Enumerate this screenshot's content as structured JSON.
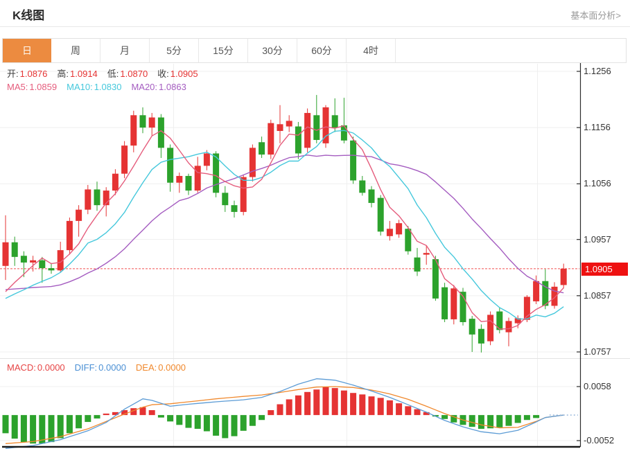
{
  "header": {
    "title": "K线图",
    "link": "基本面分析>"
  },
  "tabs": {
    "active_index": 0,
    "items": [
      "日",
      "周",
      "月",
      "5分",
      "15分",
      "30分",
      "60分",
      "4时"
    ]
  },
  "legend_ohlc": [
    {
      "label": "开:",
      "value": "1.0876"
    },
    {
      "label": "高:",
      "value": "1.0914"
    },
    {
      "label": "低:",
      "value": "1.0870"
    },
    {
      "label": "收:",
      "value": "1.0905"
    }
  ],
  "legend_ma": [
    {
      "label": "MA5:",
      "value": "1.0859",
      "color": "#e55c7c"
    },
    {
      "label": "MA10:",
      "value": "1.0830",
      "color": "#45c8dc"
    },
    {
      "label": "MA20:",
      "value": "1.0863",
      "color": "#a45cc0"
    }
  ],
  "legend_macd": [
    {
      "label": "MACD:",
      "value": "0.0000",
      "color": "#e64444"
    },
    {
      "label": "DIFF:",
      "value": "0.0000",
      "color": "#4a8fd4"
    },
    {
      "label": "DEA:",
      "value": "0.0000",
      "color": "#f0882c"
    }
  ],
  "price_axis": {
    "ticks": [
      "1.1256",
      "1.1156",
      "1.1056",
      "1.0957",
      "1.0857",
      "1.0757"
    ],
    "last_price": "1.0905"
  },
  "macd_axis": {
    "ticks": [
      "0.0058",
      "-0.0052"
    ]
  },
  "colors": {
    "up": "#e53333",
    "down": "#2ca22c",
    "ma5": "#e55c7c",
    "ma10": "#45c8dc",
    "ma20": "#a45cc0",
    "diff": "#5b9bd5",
    "dea": "#f0882c",
    "grid": "#efefef",
    "axis": "#2b2b2b",
    "border": "#e4e4e4",
    "price_line": "#f24f4f",
    "badge_bg": "#ee1111",
    "tab_active_bg": "#ec8b40",
    "dotted_zero": "#9bb9dc",
    "bottom_bar": "#1a1a1a"
  },
  "chart_data": [
    {
      "type": "candlestick",
      "name": "K线图 日线",
      "y_ticks": [
        1.1256,
        1.1156,
        1.1056,
        1.0957,
        1.0857,
        1.0757
      ],
      "last_price": 1.0905,
      "ohlc_readout": {
        "open": 1.0876,
        "high": 1.0914,
        "low": 1.087,
        "close": 1.0905
      },
      "ma_readout": {
        "MA5": 1.0859,
        "MA10": 1.083,
        "MA20": 1.0863
      },
      "ma_periods": [
        5,
        10,
        20
      ],
      "ma_seed_closes": [
        1.09,
        1.0895,
        1.089,
        1.0888,
        1.0885,
        1.088,
        1.0878,
        1.0875,
        1.0872,
        1.087,
        1.0845,
        1.0842,
        1.084,
        1.0838,
        1.0836,
        1.0844,
        1.0843,
        1.0842,
        1.084
      ],
      "candles": [
        [
          1.091,
          1.1,
          1.0885,
          1.0952
        ],
        [
          1.0952,
          1.0962,
          1.091,
          1.0926
        ],
        [
          1.0928,
          1.0936,
          1.089,
          1.0916
        ],
        [
          1.0916,
          1.0928,
          1.09,
          1.092
        ],
        [
          1.092,
          1.0926,
          1.088,
          1.0906
        ],
        [
          1.0906,
          1.0915,
          1.0896,
          1.0902
        ],
        [
          1.0902,
          1.0953,
          1.0898,
          1.0938
        ],
        [
          1.0938,
          1.0996,
          1.093,
          1.099
        ],
        [
          1.099,
          1.1018,
          1.0962,
          1.101
        ],
        [
          1.101,
          1.1054,
          1.1002,
          1.1046
        ],
        [
          1.1046,
          1.106,
          1.1008,
          1.1018
        ],
        [
          1.1018,
          1.105,
          1.0998,
          1.1044
        ],
        [
          1.1044,
          1.1082,
          1.1036,
          1.1074
        ],
        [
          1.1074,
          1.1132,
          1.1066,
          1.1124
        ],
        [
          1.1124,
          1.1186,
          1.1112,
          1.1178
        ],
        [
          1.1178,
          1.1192,
          1.1146,
          1.1156
        ],
        [
          1.1156,
          1.1182,
          1.1142,
          1.1174
        ],
        [
          1.1174,
          1.118,
          1.1102,
          1.112
        ],
        [
          1.112,
          1.1126,
          1.1042,
          1.1058
        ],
        [
          1.1058,
          1.1076,
          1.104,
          1.107
        ],
        [
          1.107,
          1.1074,
          1.1036,
          1.1044
        ],
        [
          1.1044,
          1.1104,
          1.104,
          1.1088
        ],
        [
          1.1088,
          1.1116,
          1.108,
          1.111
        ],
        [
          1.111,
          1.1114,
          1.1032,
          1.104
        ],
        [
          1.104,
          1.1052,
          1.1006,
          1.1018
        ],
        [
          1.1018,
          1.1026,
          1.0996,
          1.1006
        ],
        [
          1.1006,
          1.1072,
          1.1,
          1.1068
        ],
        [
          1.1068,
          1.1126,
          1.106,
          1.112
        ],
        [
          1.113,
          1.114,
          1.1102,
          1.1108
        ],
        [
          1.1108,
          1.117,
          1.11,
          1.1164
        ],
        [
          1.115,
          1.1196,
          1.1128,
          1.1162
        ],
        [
          1.1158,
          1.1178,
          1.1148,
          1.1168
        ],
        [
          1.1158,
          1.1166,
          1.11,
          1.111
        ],
        [
          1.112,
          1.119,
          1.1112,
          1.1182
        ],
        [
          1.1178,
          1.1214,
          1.1128,
          1.1134
        ],
        [
          1.1128,
          1.1196,
          1.112,
          1.1192
        ],
        [
          1.1178,
          1.1208,
          1.1148,
          1.1156
        ],
        [
          1.116,
          1.1209,
          1.1128,
          1.1133
        ],
        [
          1.1133,
          1.114,
          1.1056,
          1.1062
        ],
        [
          1.1062,
          1.107,
          1.1035,
          1.104
        ],
        [
          1.1046,
          1.1052,
          1.1014,
          1.1022
        ],
        [
          1.1031,
          1.1036,
          1.0964,
          1.0971
        ],
        [
          1.0963,
          1.099,
          1.0955,
          1.0976
        ],
        [
          1.0966,
          1.0992,
          1.096,
          1.0986
        ],
        [
          1.0976,
          1.0981,
          1.093,
          1.0936
        ],
        [
          1.0925,
          1.0942,
          1.0892,
          1.09
        ],
        [
          1.093,
          1.0946,
          1.0912,
          1.0933
        ],
        [
          1.0922,
          1.0928,
          1.0848,
          1.0852
        ],
        [
          1.0872,
          1.088,
          1.081,
          1.0815
        ],
        [
          1.0815,
          1.0876,
          1.0806,
          1.087
        ],
        [
          1.0864,
          1.0871,
          1.0804,
          1.081
        ],
        [
          1.0816,
          1.0821,
          1.0757,
          1.0788
        ],
        [
          1.0798,
          1.0806,
          1.0756,
          1.0772
        ],
        [
          1.0776,
          1.0829,
          1.0769,
          1.0823
        ],
        [
          1.0829,
          1.0836,
          1.079,
          1.0796
        ],
        [
          1.0792,
          1.0818,
          1.0767,
          1.0812
        ],
        [
          1.0808,
          1.0822,
          1.0799,
          1.0817
        ],
        [
          1.0814,
          1.0858,
          1.081,
          1.0855
        ],
        [
          1.0847,
          1.0893,
          1.0842,
          1.0883
        ],
        [
          1.0883,
          1.0904,
          1.0833,
          1.0839
        ],
        [
          1.0839,
          1.0881,
          1.0834,
          1.0873
        ],
        [
          1.0876,
          1.0914,
          1.087,
          1.0905
        ]
      ]
    },
    {
      "type": "bar",
      "name": "MACD",
      "y_ticks": [
        0.0058,
        -0.0052
      ],
      "readout": {
        "MACD": 0.0,
        "DIFF": 0.0,
        "DEA": 0.0
      },
      "histogram": [
        -0.0037,
        -0.0048,
        -0.0055,
        -0.0058,
        -0.0058,
        -0.0055,
        -0.0047,
        -0.0037,
        -0.0027,
        -0.0014,
        -0.0007,
        0.0003,
        0.0006,
        0.001,
        0.0014,
        0.0016,
        0.001,
        -0.0005,
        -0.0013,
        -0.002,
        -0.0026,
        -0.0028,
        -0.0033,
        -0.0042,
        -0.0047,
        -0.0043,
        -0.0032,
        -0.0022,
        -0.001,
        0.001,
        0.0022,
        0.0032,
        0.004,
        0.0047,
        0.0052,
        0.0057,
        0.0055,
        0.005,
        0.0045,
        0.0042,
        0.0038,
        0.0035,
        0.003,
        0.0024,
        0.0018,
        0.0012,
        0.0006,
        -0.0003,
        -0.0008,
        -0.0015,
        -0.002,
        -0.0024,
        -0.0028,
        -0.0027,
        -0.0025,
        -0.0022,
        -0.0016,
        -0.001,
        -0.0006,
        0.0,
        0.0,
        0.0
      ],
      "diff_points": [
        [
          0,
          -0.0068
        ],
        [
          3,
          -0.0062
        ],
        [
          6,
          -0.005
        ],
        [
          9,
          -0.0032
        ],
        [
          11,
          -0.0015
        ],
        [
          13,
          0.0012
        ],
        [
          15,
          0.0033
        ],
        [
          16,
          0.003
        ],
        [
          18,
          0.0018
        ],
        [
          20,
          0.0022
        ],
        [
          23,
          0.0027
        ],
        [
          26,
          0.0031
        ],
        [
          28,
          0.0036
        ],
        [
          30,
          0.0048
        ],
        [
          32,
          0.0063
        ],
        [
          34,
          0.0074
        ],
        [
          36,
          0.0071
        ],
        [
          38,
          0.0061
        ],
        [
          40,
          0.0049
        ],
        [
          42,
          0.0036
        ],
        [
          44,
          0.0021
        ],
        [
          46,
          0.0006
        ],
        [
          48,
          -0.0011
        ],
        [
          50,
          -0.0024
        ],
        [
          52,
          -0.0034
        ],
        [
          54,
          -0.0038
        ],
        [
          56,
          -0.0031
        ],
        [
          58,
          -0.0014
        ],
        [
          59,
          -0.0005
        ],
        [
          61,
          0.0
        ]
      ],
      "dea_points": [
        [
          0,
          -0.0058
        ],
        [
          3,
          -0.0054
        ],
        [
          6,
          -0.0044
        ],
        [
          9,
          -0.0028
        ],
        [
          11,
          -0.0013
        ],
        [
          13,
          0.0002
        ],
        [
          15,
          0.0016
        ],
        [
          16,
          0.0021
        ],
        [
          18,
          0.0023
        ],
        [
          20,
          0.0027
        ],
        [
          23,
          0.0033
        ],
        [
          26,
          0.0038
        ],
        [
          28,
          0.0041
        ],
        [
          30,
          0.0046
        ],
        [
          32,
          0.0052
        ],
        [
          34,
          0.0057
        ],
        [
          36,
          0.0058
        ],
        [
          38,
          0.0056
        ],
        [
          40,
          0.0051
        ],
        [
          42,
          0.0043
        ],
        [
          44,
          0.0032
        ],
        [
          46,
          0.0018
        ],
        [
          48,
          0.0003
        ],
        [
          50,
          -0.001
        ],
        [
          52,
          -0.002
        ],
        [
          54,
          -0.0026
        ],
        [
          56,
          -0.0025
        ],
        [
          58,
          -0.0013
        ],
        [
          59,
          -0.0005
        ],
        [
          61,
          0.0
        ]
      ]
    }
  ]
}
